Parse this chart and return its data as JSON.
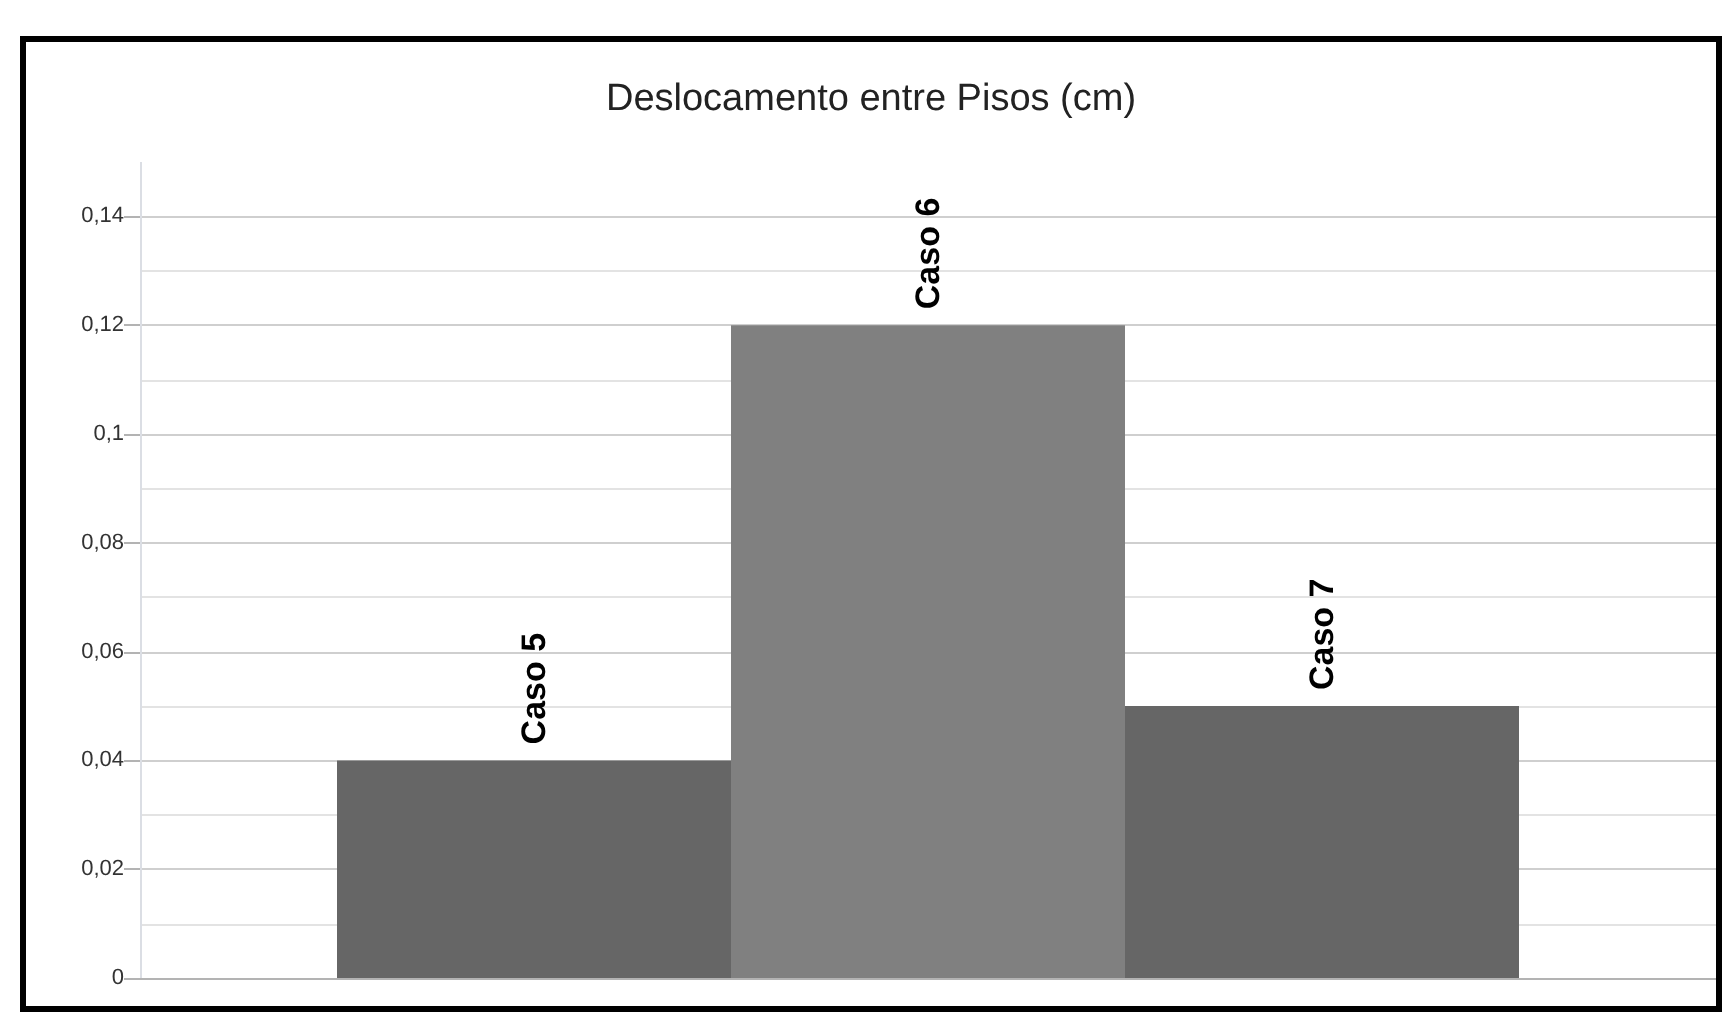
{
  "chart_data": {
    "type": "bar",
    "title": "Deslocamento entre Pisos (cm)",
    "categories": [
      null
    ],
    "series": [
      {
        "name": "Caso 5",
        "color": "#666666",
        "values": [
          0.04
        ]
      },
      {
        "name": "Caso 6",
        "color": "#808080",
        "values": [
          0.12
        ]
      },
      {
        "name": "Caso 7",
        "color": "#666666",
        "values": [
          0.05
        ]
      }
    ],
    "ylim": [
      0,
      0.15
    ],
    "yticks": [
      0,
      {
        "value": 0.01,
        "label": null
      },
      {
        "value": 0.02,
        "label": "0,02"
      },
      {
        "value": 0.03,
        "label": null
      },
      {
        "value": 0.04,
        "label": "0,04"
      },
      {
        "value": 0.05,
        "label": null
      },
      {
        "value": 0.06,
        "label": "0,06"
      },
      {
        "value": 0.07,
        "label": null
      },
      {
        "value": 0.08,
        "label": "0,08"
      },
      {
        "value": 0.09,
        "label": null
      },
      {
        "value": 0.1,
        "label": "0,1"
      },
      {
        "value": 0.11,
        "label": null
      },
      {
        "value": 0.12,
        "label": "0,12"
      },
      {
        "value": 0.13,
        "label": null
      },
      {
        "value": 0.14,
        "label": "0,14"
      }
    ],
    "grid": true,
    "legend": false
  }
}
